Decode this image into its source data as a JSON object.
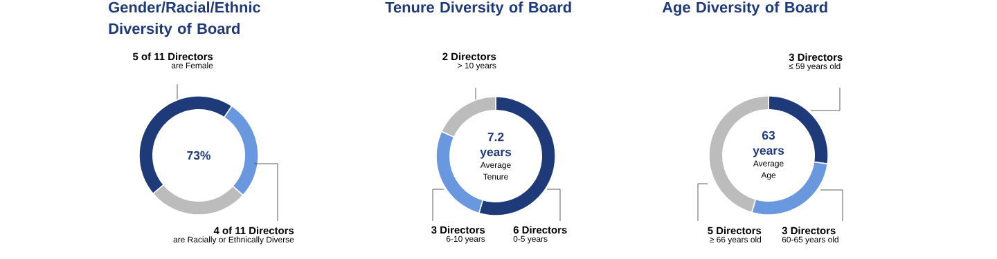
{
  "chart_data": [
    {
      "type": "donut",
      "title": "Gender/Racial/Ethnic Diversity of Board",
      "categories": [
        "5 of 11 Directors",
        "4 of 11 Directors",
        null
      ],
      "values": [
        45.5,
        27.3,
        27.2
      ],
      "colors": [
        "#1f3a78",
        "#6a98df",
        "#bcbcbc"
      ],
      "annotations": [
        "73%",
        "are Female",
        "are Racially or Ethnically Diverse"
      ]
    },
    {
      "type": "donut",
      "title": "Tenure Diversity of Board",
      "categories": [
        "6 Directors",
        "3 Directors",
        "2 Directors"
      ],
      "values": [
        6,
        3,
        2
      ],
      "colors": [
        "#1f3a78",
        "#6a98df",
        "#bcbcbc"
      ],
      "annotations": [
        "7.2 years",
        "Average Tenure",
        "0-5 years",
        "6-10 years",
        "> 10 years"
      ]
    },
    {
      "type": "donut",
      "title": "Age Diversity of Board",
      "categories": [
        "3 Directors",
        "3 Directors",
        "5 Directors"
      ],
      "values": [
        3,
        3,
        5
      ],
      "colors": [
        "#1f3a78",
        "#6a98df",
        "#bcbcbc"
      ],
      "annotations": [
        "63 years",
        "Average Age",
        "≤ 59 years old",
        "60-65 years old",
        "≥ 66 years old"
      ]
    }
  ]
}
